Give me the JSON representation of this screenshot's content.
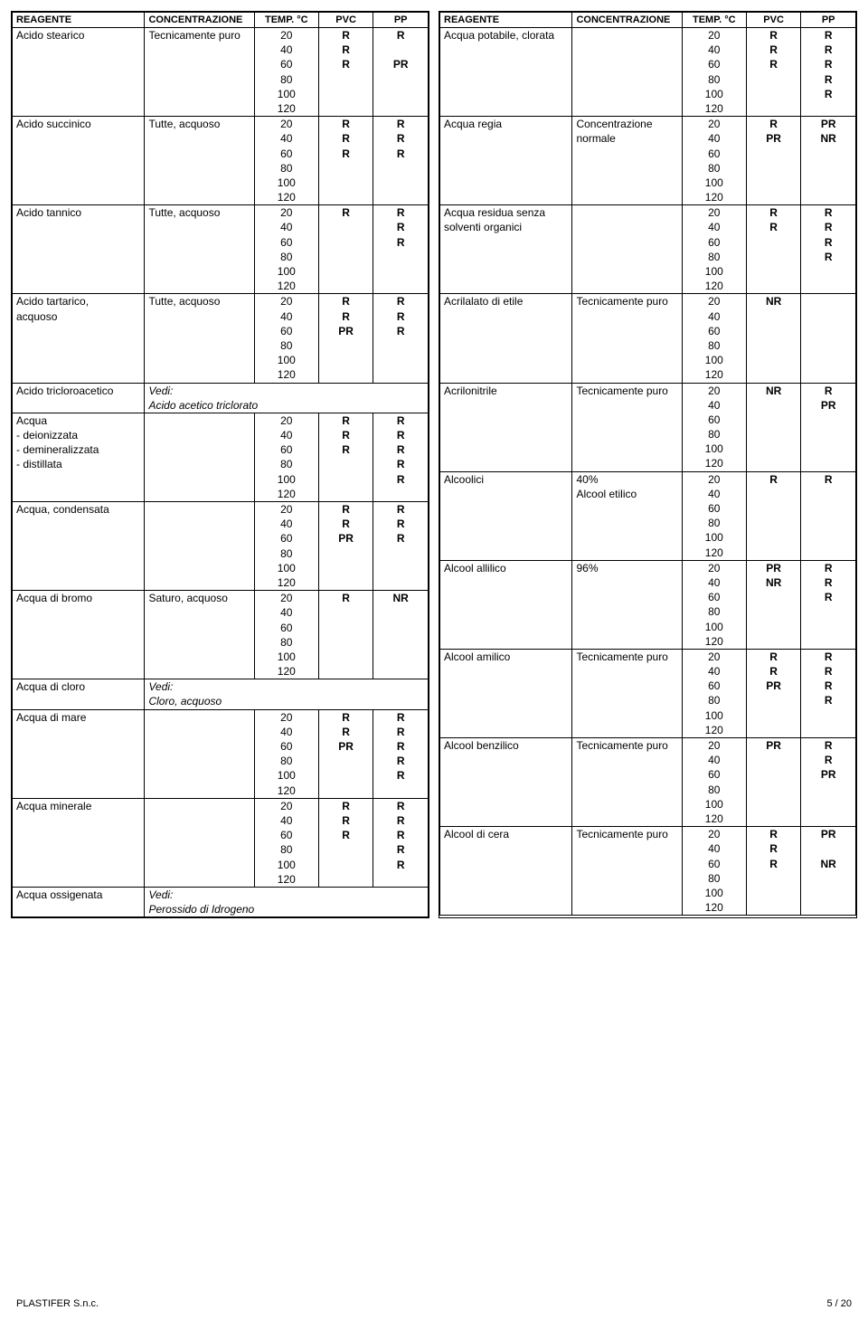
{
  "headers": {
    "reagent": "REAGENTE",
    "conc": "CONCENTRAZIONE",
    "temp": "TEMP. °C",
    "pvc": "PVC",
    "pp": "PP"
  },
  "temps": [
    "20",
    "40",
    "60",
    "80",
    "100",
    "120"
  ],
  "footer": {
    "left": "PLASTIFER S.n.c.",
    "right": "5 / 20"
  },
  "left_groups": [
    {
      "rows": [
        {
          "reagent": "Acido stearico",
          "conc": "Tecnicamente puro",
          "temp": "20",
          "pvc": "R",
          "pp": "R"
        },
        {
          "reagent": "",
          "conc": "",
          "temp": "40",
          "pvc": "R",
          "pp": ""
        },
        {
          "reagent": "",
          "conc": "",
          "temp": "60",
          "pvc": "R",
          "pp": "PR"
        },
        {
          "reagent": "",
          "conc": "",
          "temp": "80",
          "pvc": "",
          "pp": ""
        },
        {
          "reagent": "",
          "conc": "",
          "temp": "100",
          "pvc": "",
          "pp": ""
        },
        {
          "reagent": "",
          "conc": "",
          "temp": "120",
          "pvc": "",
          "pp": ""
        }
      ]
    },
    {
      "rows": [
        {
          "reagent": "Acido succinico",
          "conc": "Tutte, acquoso",
          "temp": "20",
          "pvc": "R",
          "pp": "R"
        },
        {
          "reagent": "",
          "conc": "",
          "temp": "40",
          "pvc": "R",
          "pp": "R"
        },
        {
          "reagent": "",
          "conc": "",
          "temp": "60",
          "pvc": "R",
          "pp": "R"
        },
        {
          "reagent": "",
          "conc": "",
          "temp": "80",
          "pvc": "",
          "pp": ""
        },
        {
          "reagent": "",
          "conc": "",
          "temp": "100",
          "pvc": "",
          "pp": ""
        },
        {
          "reagent": "",
          "conc": "",
          "temp": "120",
          "pvc": "",
          "pp": ""
        }
      ]
    },
    {
      "rows": [
        {
          "reagent": "Acido tannico",
          "conc": "Tutte, acquoso",
          "temp": "20",
          "pvc": "R",
          "pp": "R"
        },
        {
          "reagent": "",
          "conc": "",
          "temp": "40",
          "pvc": "",
          "pp": "R"
        },
        {
          "reagent": "",
          "conc": "",
          "temp": "60",
          "pvc": "",
          "pp": "R"
        },
        {
          "reagent": "",
          "conc": "",
          "temp": "80",
          "pvc": "",
          "pp": ""
        },
        {
          "reagent": "",
          "conc": "",
          "temp": "100",
          "pvc": "",
          "pp": ""
        },
        {
          "reagent": "",
          "conc": "",
          "temp": "120",
          "pvc": "",
          "pp": ""
        }
      ]
    },
    {
      "rows": [
        {
          "reagent": "Acido tartarico,",
          "conc": "Tutte, acquoso",
          "temp": "20",
          "pvc": "R",
          "pp": "R"
        },
        {
          "reagent": "acquoso",
          "conc": "",
          "temp": "40",
          "pvc": "R",
          "pp": "R"
        },
        {
          "reagent": "",
          "conc": "",
          "temp": "60",
          "pvc": "PR",
          "pp": "R"
        },
        {
          "reagent": "",
          "conc": "",
          "temp": "80",
          "pvc": "",
          "pp": ""
        },
        {
          "reagent": "",
          "conc": "",
          "temp": "100",
          "pvc": "",
          "pp": ""
        },
        {
          "reagent": "",
          "conc": "",
          "temp": "120",
          "pvc": "",
          "pp": ""
        }
      ]
    },
    {
      "rows": [
        {
          "reagent": "Acido tricloroacetico",
          "conc": "Vedi:",
          "conc_italic": true,
          "merge": true
        },
        {
          "reagent": "",
          "conc": "Acido acetico triclorato",
          "conc_italic": true,
          "merge": true
        }
      ]
    },
    {
      "rows": [
        {
          "reagent": "Acqua",
          "conc": "",
          "temp": "20",
          "pvc": "R",
          "pp": "R"
        },
        {
          "reagent": "- deionizzata",
          "conc": "",
          "temp": "40",
          "pvc": "R",
          "pp": "R"
        },
        {
          "reagent": "- demineralizzata",
          "conc": "",
          "temp": "60",
          "pvc": "R",
          "pp": "R"
        },
        {
          "reagent": "- distillata",
          "conc": "",
          "temp": "80",
          "pvc": "",
          "pp": "R"
        },
        {
          "reagent": "",
          "conc": "",
          "temp": "100",
          "pvc": "",
          "pp": "R"
        },
        {
          "reagent": "",
          "conc": "",
          "temp": "120",
          "pvc": "",
          "pp": ""
        }
      ]
    },
    {
      "rows": [
        {
          "reagent": "Acqua, condensata",
          "conc": "",
          "temp": "20",
          "pvc": "R",
          "pp": "R"
        },
        {
          "reagent": "",
          "conc": "",
          "temp": "40",
          "pvc": "R",
          "pp": "R"
        },
        {
          "reagent": "",
          "conc": "",
          "temp": "60",
          "pvc": "PR",
          "pp": "R"
        },
        {
          "reagent": "",
          "conc": "",
          "temp": "80",
          "pvc": "",
          "pp": ""
        },
        {
          "reagent": "",
          "conc": "",
          "temp": "100",
          "pvc": "",
          "pp": ""
        },
        {
          "reagent": "",
          "conc": "",
          "temp": "120",
          "pvc": "",
          "pp": ""
        }
      ]
    },
    {
      "rows": [
        {
          "reagent": "Acqua di bromo",
          "conc": "Saturo, acquoso",
          "temp": "20",
          "pvc": "R",
          "pp": "NR"
        },
        {
          "reagent": "",
          "conc": "",
          "temp": "40",
          "pvc": "",
          "pp": ""
        },
        {
          "reagent": "",
          "conc": "",
          "temp": "60",
          "pvc": "",
          "pp": ""
        },
        {
          "reagent": "",
          "conc": "",
          "temp": "80",
          "pvc": "",
          "pp": ""
        },
        {
          "reagent": "",
          "conc": "",
          "temp": "100",
          "pvc": "",
          "pp": ""
        },
        {
          "reagent": "",
          "conc": "",
          "temp": "120",
          "pvc": "",
          "pp": ""
        }
      ]
    },
    {
      "rows": [
        {
          "reagent": "Acqua di cloro",
          "conc": "Vedi:",
          "conc_italic": true,
          "merge": true
        },
        {
          "reagent": "",
          "conc": "Cloro, acquoso",
          "conc_italic": true,
          "merge": true
        }
      ]
    },
    {
      "rows": [
        {
          "reagent": "Acqua di mare",
          "conc": "",
          "temp": "20",
          "pvc": "R",
          "pp": "R"
        },
        {
          "reagent": "",
          "conc": "",
          "temp": "40",
          "pvc": "R",
          "pp": "R"
        },
        {
          "reagent": "",
          "conc": "",
          "temp": "60",
          "pvc": "PR",
          "pp": "R"
        },
        {
          "reagent": "",
          "conc": "",
          "temp": "80",
          "pvc": "",
          "pp": "R"
        },
        {
          "reagent": "",
          "conc": "",
          "temp": "100",
          "pvc": "",
          "pp": "R"
        },
        {
          "reagent": "",
          "conc": "",
          "temp": "120",
          "pvc": "",
          "pp": ""
        }
      ]
    },
    {
      "rows": [
        {
          "reagent": "Acqua minerale",
          "conc": "",
          "temp": "20",
          "pvc": "R",
          "pp": "R"
        },
        {
          "reagent": "",
          "conc": "",
          "temp": "40",
          "pvc": "R",
          "pp": "R"
        },
        {
          "reagent": "",
          "conc": "",
          "temp": "60",
          "pvc": "R",
          "pp": "R"
        },
        {
          "reagent": "",
          "conc": "",
          "temp": "80",
          "pvc": "",
          "pp": "R"
        },
        {
          "reagent": "",
          "conc": "",
          "temp": "100",
          "pvc": "",
          "pp": "R"
        },
        {
          "reagent": "",
          "conc": "",
          "temp": "120",
          "pvc": "",
          "pp": ""
        }
      ]
    },
    {
      "rows": [
        {
          "reagent": "Acqua ossigenata",
          "conc": "Vedi:",
          "conc_italic": true,
          "merge": true
        },
        {
          "reagent": "",
          "conc": "Perossido di Idrogeno",
          "conc_italic": true,
          "merge": true
        }
      ]
    }
  ],
  "right_groups": [
    {
      "rows": [
        {
          "reagent": "Acqua potabile, clorata",
          "conc": "",
          "temp": "20",
          "pvc": "R",
          "pp": "R"
        },
        {
          "reagent": "",
          "conc": "",
          "temp": "40",
          "pvc": "R",
          "pp": "R"
        },
        {
          "reagent": "",
          "conc": "",
          "temp": "60",
          "pvc": "R",
          "pp": "R"
        },
        {
          "reagent": "",
          "conc": "",
          "temp": "80",
          "pvc": "",
          "pp": "R"
        },
        {
          "reagent": "",
          "conc": "",
          "temp": "100",
          "pvc": "",
          "pp": "R"
        },
        {
          "reagent": "",
          "conc": "",
          "temp": "120",
          "pvc": "",
          "pp": ""
        }
      ]
    },
    {
      "rows": [
        {
          "reagent": "Acqua regia",
          "conc": "Concentrazione",
          "temp": "20",
          "pvc": "R",
          "pp": "PR"
        },
        {
          "reagent": "",
          "conc": "normale",
          "temp": "40",
          "pvc": "PR",
          "pp": "NR"
        },
        {
          "reagent": "",
          "conc": "",
          "temp": "60",
          "pvc": "",
          "pp": ""
        },
        {
          "reagent": "",
          "conc": "",
          "temp": "80",
          "pvc": "",
          "pp": ""
        },
        {
          "reagent": "",
          "conc": "",
          "temp": "100",
          "pvc": "",
          "pp": ""
        },
        {
          "reagent": "",
          "conc": "",
          "temp": "120",
          "pvc": "",
          "pp": ""
        }
      ]
    },
    {
      "rows": [
        {
          "reagent": "Acqua residua senza",
          "conc": "",
          "temp": "20",
          "pvc": "R",
          "pp": "R"
        },
        {
          "reagent": "solventi organici",
          "conc": "",
          "temp": "40",
          "pvc": "R",
          "pp": "R"
        },
        {
          "reagent": "",
          "conc": "",
          "temp": "60",
          "pvc": "",
          "pp": "R"
        },
        {
          "reagent": "",
          "conc": "",
          "temp": "80",
          "pvc": "",
          "pp": "R"
        },
        {
          "reagent": "",
          "conc": "",
          "temp": "100",
          "pvc": "",
          "pp": ""
        },
        {
          "reagent": "",
          "conc": "",
          "temp": "120",
          "pvc": "",
          "pp": ""
        }
      ]
    },
    {
      "rows": [
        {
          "reagent": "Acrilalato di etile",
          "conc": "Tecnicamente puro",
          "temp": "20",
          "pvc": "NR",
          "pp": ""
        },
        {
          "reagent": "",
          "conc": "",
          "temp": "40",
          "pvc": "",
          "pp": ""
        },
        {
          "reagent": "",
          "conc": "",
          "temp": "60",
          "pvc": "",
          "pp": ""
        },
        {
          "reagent": "",
          "conc": "",
          "temp": "80",
          "pvc": "",
          "pp": ""
        },
        {
          "reagent": "",
          "conc": "",
          "temp": "100",
          "pvc": "",
          "pp": ""
        },
        {
          "reagent": "",
          "conc": "",
          "temp": "120",
          "pvc": "",
          "pp": ""
        }
      ]
    },
    {
      "rows": [
        {
          "reagent": "Acrilonitrile",
          "conc": "Tecnicamente puro",
          "temp": "20",
          "pvc": "NR",
          "pp": "R"
        },
        {
          "reagent": "",
          "conc": "",
          "temp": "40",
          "pvc": "",
          "pp": "PR"
        },
        {
          "reagent": "",
          "conc": "",
          "temp": "60",
          "pvc": "",
          "pp": ""
        },
        {
          "reagent": "",
          "conc": "",
          "temp": "80",
          "pvc": "",
          "pp": ""
        },
        {
          "reagent": "",
          "conc": "",
          "temp": "100",
          "pvc": "",
          "pp": ""
        },
        {
          "reagent": "",
          "conc": "",
          "temp": "120",
          "pvc": "",
          "pp": ""
        }
      ]
    },
    {
      "rows": [
        {
          "reagent": "Alcoolici",
          "conc": "40%",
          "temp": "20",
          "pvc": "R",
          "pp": "R"
        },
        {
          "reagent": "",
          "conc": "Alcool etilico",
          "temp": "40",
          "pvc": "",
          "pp": ""
        },
        {
          "reagent": "",
          "conc": "",
          "temp": "60",
          "pvc": "",
          "pp": ""
        },
        {
          "reagent": "",
          "conc": "",
          "temp": "80",
          "pvc": "",
          "pp": ""
        },
        {
          "reagent": "",
          "conc": "",
          "temp": "100",
          "pvc": "",
          "pp": ""
        },
        {
          "reagent": "",
          "conc": "",
          "temp": "120",
          "pvc": "",
          "pp": ""
        }
      ]
    },
    {
      "rows": [
        {
          "reagent": "Alcool allilico",
          "conc": "96%",
          "temp": "20",
          "pvc": "PR",
          "pp": "R"
        },
        {
          "reagent": "",
          "conc": "",
          "temp": "40",
          "pvc": "NR",
          "pp": "R"
        },
        {
          "reagent": "",
          "conc": "",
          "temp": "60",
          "pvc": "",
          "pp": "R"
        },
        {
          "reagent": "",
          "conc": "",
          "temp": "80",
          "pvc": "",
          "pp": ""
        },
        {
          "reagent": "",
          "conc": "",
          "temp": "100",
          "pvc": "",
          "pp": ""
        },
        {
          "reagent": "",
          "conc": "",
          "temp": "120",
          "pvc": "",
          "pp": ""
        }
      ]
    },
    {
      "rows": [
        {
          "reagent": "Alcool amilico",
          "conc": "Tecnicamente puro",
          "temp": "20",
          "pvc": "R",
          "pp": "R"
        },
        {
          "reagent": "",
          "conc": "",
          "temp": "40",
          "pvc": "R",
          "pp": "R"
        },
        {
          "reagent": "",
          "conc": "",
          "temp": "60",
          "pvc": "PR",
          "pp": "R"
        },
        {
          "reagent": "",
          "conc": "",
          "temp": "80",
          "pvc": "",
          "pp": "R"
        },
        {
          "reagent": "",
          "conc": "",
          "temp": "100",
          "pvc": "",
          "pp": ""
        },
        {
          "reagent": "",
          "conc": "",
          "temp": "120",
          "pvc": "",
          "pp": ""
        }
      ]
    },
    {
      "rows": [
        {
          "reagent": "Alcool benzilico",
          "conc": "Tecnicamente puro",
          "temp": "20",
          "pvc": "PR",
          "pp": "R"
        },
        {
          "reagent": "",
          "conc": "",
          "temp": "40",
          "pvc": "",
          "pp": "R"
        },
        {
          "reagent": "",
          "conc": "",
          "temp": "60",
          "pvc": "",
          "pp": "PR"
        },
        {
          "reagent": "",
          "conc": "",
          "temp": "80",
          "pvc": "",
          "pp": ""
        },
        {
          "reagent": "",
          "conc": "",
          "temp": "100",
          "pvc": "",
          "pp": ""
        },
        {
          "reagent": "",
          "conc": "",
          "temp": "120",
          "pvc": "",
          "pp": ""
        }
      ]
    },
    {
      "rows": [
        {
          "reagent": "Alcool di cera",
          "conc": "Tecnicamente puro",
          "temp": "20",
          "pvc": "R",
          "pp": "PR"
        },
        {
          "reagent": "",
          "conc": "",
          "temp": "40",
          "pvc": "R",
          "pp": ""
        },
        {
          "reagent": "",
          "conc": "",
          "temp": "60",
          "pvc": "R",
          "pp": "NR"
        },
        {
          "reagent": "",
          "conc": "",
          "temp": "80",
          "pvc": "",
          "pp": ""
        },
        {
          "reagent": "",
          "conc": "",
          "temp": "100",
          "pvc": "",
          "pp": ""
        },
        {
          "reagent": "",
          "conc": "",
          "temp": "120",
          "pvc": "",
          "pp": ""
        }
      ]
    }
  ]
}
